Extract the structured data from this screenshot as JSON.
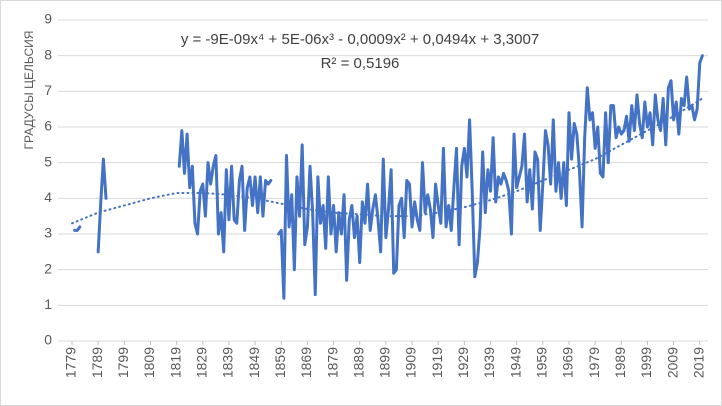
{
  "chart_data": {
    "type": "line",
    "annotations": [
      "y = -9E-09x⁴ + 5E-06x³ - 0,0009x² + 0,0494x + 3,3007",
      "R² = 0,5196"
    ],
    "ylabel": "ГРАДУСЫ ЦЕЛЬСИЯ",
    "x": [
      1779,
      1780,
      1781,
      1782,
      1783,
      1784,
      1785,
      1786,
      1787,
      1788,
      1789,
      1790,
      1791,
      1792,
      1793,
      1794,
      1795,
      1796,
      1797,
      1798,
      1799,
      1800,
      1801,
      1802,
      1803,
      1804,
      1805,
      1806,
      1807,
      1808,
      1809,
      1810,
      1811,
      1812,
      1813,
      1814,
      1815,
      1816,
      1817,
      1818,
      1819,
      1820,
      1821,
      1822,
      1823,
      1824,
      1825,
      1826,
      1827,
      1828,
      1829,
      1830,
      1831,
      1832,
      1833,
      1834,
      1835,
      1836,
      1837,
      1838,
      1839,
      1840,
      1841,
      1842,
      1843,
      1844,
      1845,
      1846,
      1847,
      1848,
      1849,
      1850,
      1851,
      1852,
      1853,
      1854,
      1855,
      1856,
      1857,
      1858,
      1859,
      1860,
      1861,
      1862,
      1863,
      1864,
      1865,
      1866,
      1867,
      1868,
      1869,
      1870,
      1871,
      1872,
      1873,
      1874,
      1875,
      1876,
      1877,
      1878,
      1879,
      1880,
      1881,
      1882,
      1883,
      1884,
      1885,
      1886,
      1887,
      1888,
      1889,
      1890,
      1891,
      1892,
      1893,
      1894,
      1895,
      1896,
      1897,
      1898,
      1899,
      1900,
      1901,
      1902,
      1903,
      1904,
      1905,
      1906,
      1907,
      1908,
      1909,
      1910,
      1911,
      1912,
      1913,
      1914,
      1915,
      1916,
      1917,
      1918,
      1919,
      1920,
      1921,
      1922,
      1923,
      1924,
      1925,
      1926,
      1927,
      1928,
      1929,
      1930,
      1931,
      1932,
      1933,
      1934,
      1935,
      1936,
      1937,
      1938,
      1939,
      1940,
      1941,
      1942,
      1943,
      1944,
      1945,
      1946,
      1947,
      1948,
      1949,
      1950,
      1951,
      1952,
      1953,
      1954,
      1955,
      1956,
      1957,
      1958,
      1959,
      1960,
      1961,
      1962,
      1963,
      1964,
      1965,
      1966,
      1967,
      1968,
      1969,
      1970,
      1971,
      1972,
      1973,
      1974,
      1975,
      1976,
      1977,
      1978,
      1979,
      1980,
      1981,
      1982,
      1983,
      1984,
      1985,
      1986,
      1987,
      1988,
      1989,
      1990,
      1991,
      1992,
      1993,
      1994,
      1995,
      1996,
      1997,
      1998,
      1999,
      2000,
      2001,
      2002,
      2003,
      2004,
      2005,
      2006,
      2007,
      2008,
      2009,
      2010,
      2011,
      2012,
      2013,
      2014,
      2015,
      2016,
      2017,
      2018,
      2019,
      2020
    ],
    "series": [
      {
        "color": "#4472c4",
        "values": [
          null,
          3.1,
          3.1,
          3.2,
          null,
          null,
          null,
          null,
          null,
          null,
          2.5,
          3.9,
          5.1,
          4.0,
          null,
          null,
          null,
          null,
          null,
          null,
          null,
          null,
          null,
          null,
          null,
          null,
          null,
          null,
          null,
          null,
          null,
          null,
          null,
          null,
          null,
          null,
          null,
          null,
          null,
          null,
          null,
          4.9,
          5.9,
          4.7,
          5.8,
          4.3,
          4.9,
          3.3,
          3.0,
          4.2,
          4.4,
          3.5,
          5.0,
          4.4,
          4.9,
          5.2,
          3.0,
          3.6,
          2.5,
          4.8,
          3.4,
          4.9,
          3.4,
          3.3,
          4.5,
          4.9,
          3.1,
          4.3,
          4.6,
          3.8,
          4.6,
          3.6,
          4.6,
          3.5,
          4.5,
          4.4,
          4.5,
          null,
          null,
          3.0,
          3.1,
          1.2,
          5.2,
          3.2,
          4.1,
          2.0,
          4.6,
          3.5,
          5.5,
          2.7,
          3.2,
          4.9,
          3.6,
          1.3,
          4.6,
          3.3,
          3.8,
          2.6,
          4.6,
          3.0,
          3.8,
          2.5,
          3.6,
          3.0,
          4.1,
          1.7,
          3.4,
          3.8,
          2.9,
          3.5,
          2.2,
          3.9,
          3.3,
          4.4,
          3.1,
          3.7,
          4.1,
          3.4,
          2.5,
          5.1,
          2.9,
          3.7,
          4.8,
          1.9,
          2.0,
          3.8,
          4.0,
          2.9,
          4.5,
          4.4,
          3.2,
          3.9,
          3.4,
          3.1,
          5.0,
          3.6,
          4.1,
          3.7,
          2.9,
          4.4,
          3.8,
          3.3,
          5.4,
          3.2,
          3.8,
          3.1,
          4.3,
          5.4,
          2.7,
          4.9,
          5.4,
          4.6,
          6.2,
          4.2,
          1.8,
          2.2,
          3.2,
          5.3,
          3.6,
          4.8,
          4.2,
          5.7,
          3.9,
          4.6,
          4.4,
          4.7,
          4.5,
          4.2,
          3.0,
          5.8,
          4.3,
          4.6,
          4.9,
          5.8,
          3.9,
          4.8,
          3.7,
          5.3,
          5.1,
          3.1,
          4.4,
          5.9,
          5.5,
          4.4,
          6.2,
          4.2,
          5.0,
          4.0,
          5.0,
          3.8,
          6.4,
          5.1,
          6.1,
          5.8,
          4.8,
          3.2,
          5.7,
          7.1,
          6.2,
          6.4,
          5.4,
          6.0,
          4.7,
          4.6,
          6.4,
          5.0,
          6.6,
          6.6,
          5.7,
          6.0,
          5.8,
          5.9,
          6.3,
          5.6,
          6.6,
          5.9,
          6.9,
          6.1,
          5.7,
          6.7,
          6.0,
          6.4,
          5.5,
          6.9,
          6.2,
          5.9,
          6.8,
          5.5,
          7.1,
          7.3,
          6.2,
          6.7,
          5.8,
          6.8,
          6.6,
          7.4,
          6.5,
          6.6,
          6.2,
          6.5,
          7.8,
          8.0
        ]
      }
    ],
    "trendline": {
      "color": "#4472c4",
      "x": [
        1779,
        1789,
        1799,
        1809,
        1819,
        1829,
        1839,
        1849,
        1859,
        1869,
        1879,
        1889,
        1899,
        1909,
        1919,
        1929,
        1939,
        1949,
        1959,
        1969,
        1979,
        1989,
        1999,
        2009,
        2020
      ],
      "values": [
        3.3,
        3.6,
        3.8,
        4.0,
        4.15,
        4.15,
        4.1,
        4.0,
        3.85,
        3.7,
        3.6,
        3.55,
        3.5,
        3.5,
        3.6,
        3.75,
        3.95,
        4.2,
        4.5,
        4.8,
        5.1,
        5.5,
        5.9,
        6.3,
        6.8
      ]
    },
    "xlim": [
      1779,
      2021
    ],
    "xticks": [
      1779,
      1789,
      1799,
      1809,
      1819,
      1829,
      1839,
      1849,
      1859,
      1869,
      1879,
      1889,
      1899,
      1909,
      1919,
      1929,
      1939,
      1949,
      1959,
      1969,
      1979,
      1989,
      1999,
      2009,
      2019
    ],
    "ylim": [
      0,
      9
    ],
    "yticks": [
      0,
      1,
      2,
      3,
      4,
      5,
      6,
      7,
      8,
      9
    ],
    "grid": true
  }
}
